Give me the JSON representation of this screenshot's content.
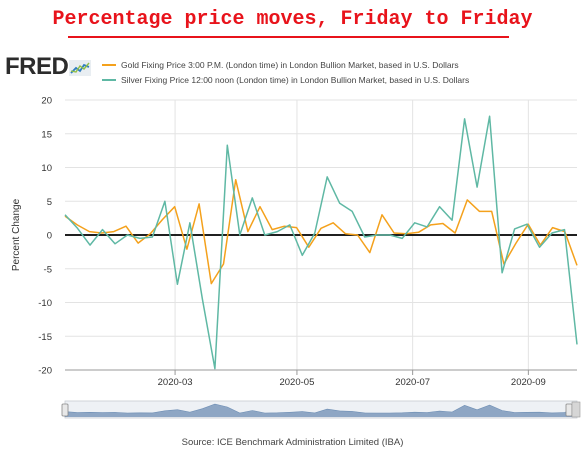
{
  "page_title": "Percentage price moves, Friday to Friday",
  "logo_text": "FRED",
  "source": "Source: ICE Benchmark Administration Limited (IBA)",
  "chart_data": {
    "type": "line",
    "ylabel": "Percent Change",
    "ylim": [
      -20,
      20
    ],
    "yticks": [
      20,
      15,
      10,
      5,
      0,
      -5,
      -10,
      -15,
      -20
    ],
    "xtick_labels": [
      "2020-03",
      "2020-05",
      "2020-07",
      "2020-09"
    ],
    "grid": true,
    "legend_placement": "top",
    "series": [
      {
        "name": "Gold Fixing Price 3:00 P.M. (London time) in London Bullion Market, based in U.S. Dollars",
        "color": "#f4a11c",
        "values": [
          2.8,
          1.5,
          0.5,
          0.3,
          0.5,
          1.3,
          -1.2,
          0.2,
          2.3,
          4.2,
          -2.1,
          4.6,
          -7.2,
          -4.3,
          8.2,
          0.5,
          4.2,
          0.8,
          1.3,
          1.1,
          -1.8,
          1.0,
          1.8,
          0.2,
          0.0,
          -2.6,
          3.0,
          0.3,
          0.2,
          0.4,
          1.5,
          1.7,
          0.3,
          5.2,
          3.5,
          3.5,
          -4.3,
          -1.2,
          1.6,
          -1.5,
          1.1,
          0.5,
          -4.5
        ]
      },
      {
        "name": "Silver Fixing Price 12:00 noon (London time) in London Bullion Market, based in U.S. Dollars",
        "color": "#5fb8a4",
        "values": [
          3.0,
          1.0,
          -1.5,
          0.8,
          -1.3,
          0.0,
          -0.5,
          -0.3,
          5.0,
          -7.3,
          1.8,
          -9.5,
          -19.8,
          13.3,
          0.0,
          5.5,
          0.0,
          0.5,
          1.5,
          -3.0,
          0.3,
          8.6,
          4.7,
          3.5,
          -0.3,
          0.0,
          0.0,
          -0.5,
          1.8,
          1.2,
          4.2,
          2.2,
          17.2,
          7.1,
          17.6,
          -5.6,
          0.9,
          1.6,
          -1.8,
          0.3,
          0.8,
          -16.2
        ]
      }
    ]
  }
}
